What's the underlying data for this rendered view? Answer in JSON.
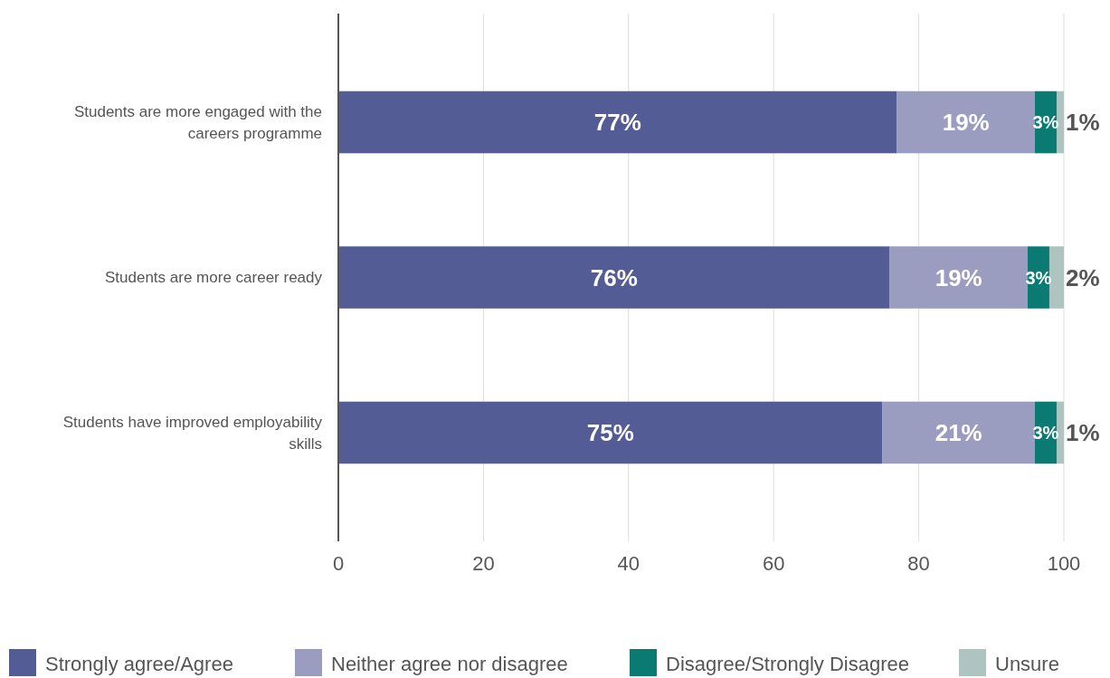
{
  "chart_data": {
    "type": "bar",
    "orientation": "horizontal",
    "stacked": true,
    "categories": [
      "Students are more engaged with the careers programme",
      "Students are more career ready",
      "Students have improved employability skills"
    ],
    "series": [
      {
        "name": "Strongly agree/Agree",
        "color": "#535c94",
        "values": [
          77,
          76,
          75
        ],
        "value_labels": [
          "77%",
          "76%",
          "75%"
        ]
      },
      {
        "name": "Neither agree nor disagree",
        "color": "#9a9cc0",
        "values": [
          19,
          19,
          21
        ],
        "value_labels": [
          "19%",
          "19%",
          "21%"
        ]
      },
      {
        "name": "Disagree/Strongly Disagree",
        "color": "#0b7a72",
        "values": [
          3,
          3,
          3
        ],
        "value_labels": [
          "3%",
          "3%",
          "3%"
        ]
      },
      {
        "name": "Unsure",
        "color": "#adc4c0",
        "values": [
          1,
          2,
          1
        ],
        "value_labels": [
          "1%",
          "2%",
          "1%"
        ]
      }
    ],
    "xlim": [
      0,
      100
    ],
    "xticks": [
      0,
      20,
      40,
      60,
      80,
      100
    ],
    "grid": "x",
    "legend": "bottom"
  }
}
